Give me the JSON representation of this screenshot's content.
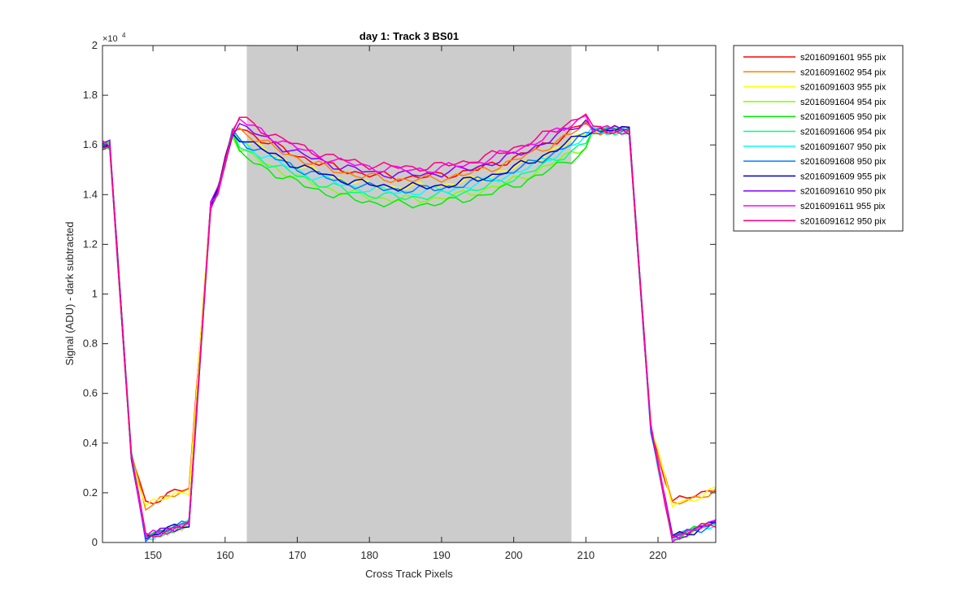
{
  "chart_data": {
    "type": "line",
    "title": "day 1: Track 3  BS01",
    "xlabel": "Cross Track Pixels",
    "ylabel": "Signal (ADU) - dark subtracted",
    "y_exponent_label": "×10",
    "y_exponent_power": "4",
    "xlim": [
      143,
      228
    ],
    "ylim": [
      0,
      2
    ],
    "xticks": [
      150,
      160,
      170,
      180,
      190,
      200,
      210,
      220
    ],
    "yticks": [
      0,
      0.2,
      0.4,
      0.6,
      0.8,
      1,
      1.2,
      1.4,
      1.6,
      1.8,
      2
    ],
    "ytick_labels": [
      "0",
      "0.2",
      "0.4",
      "0.6",
      "0.8",
      "1",
      "1.2",
      "1.4",
      "1.6",
      "1.8",
      "2"
    ],
    "shaded_region": {
      "x_start": 163,
      "x_end": 208,
      "color": "#cccccc"
    },
    "grid": false,
    "legend_position": "outside-top-right",
    "series": [
      {
        "name": "s2016091601 955 pix",
        "color": "#ff0000",
        "level": 1.47,
        "low": 0.16,
        "x": [],
        "y": []
      },
      {
        "name": "s2016091602 954 pix",
        "color": "#ff8000",
        "level": 1.46,
        "low": 0.15,
        "x": [],
        "y": []
      },
      {
        "name": "s2016091603 955 pix",
        "color": "#ffff00",
        "level": 1.43,
        "low": 0.15,
        "x": [],
        "y": []
      },
      {
        "name": "s2016091604 954 pix",
        "color": "#80ff00",
        "level": 1.38,
        "low": 0.02,
        "x": [],
        "y": []
      },
      {
        "name": "s2016091605 950 pix",
        "color": "#00ee00",
        "level": 1.36,
        "low": 0.02,
        "x": [],
        "y": []
      },
      {
        "name": "s2016091606 954 pix",
        "color": "#00ff80",
        "level": 1.39,
        "low": 0.02,
        "x": [],
        "y": []
      },
      {
        "name": "s2016091607 950 pix",
        "color": "#00ffff",
        "level": 1.41,
        "low": 0.02,
        "x": [],
        "y": []
      },
      {
        "name": "s2016091608 950 pix",
        "color": "#0080ff",
        "level": 1.42,
        "low": 0.02,
        "x": [],
        "y": []
      },
      {
        "name": "s2016091609 955 pix",
        "color": "#0000cc",
        "level": 1.43,
        "low": 0.02,
        "x": [],
        "y": []
      },
      {
        "name": "s2016091610 950 pix",
        "color": "#8000ff",
        "level": 1.48,
        "low": 0.02,
        "x": [],
        "y": []
      },
      {
        "name": "s2016091611 955 pix",
        "color": "#ff00ff",
        "level": 1.5,
        "low": 0.02,
        "x": [],
        "y": []
      },
      {
        "name": "s2016091612 950 pix",
        "color": "#ff0080",
        "level": 1.51,
        "low": 0.02,
        "x": [],
        "y": []
      }
    ]
  }
}
